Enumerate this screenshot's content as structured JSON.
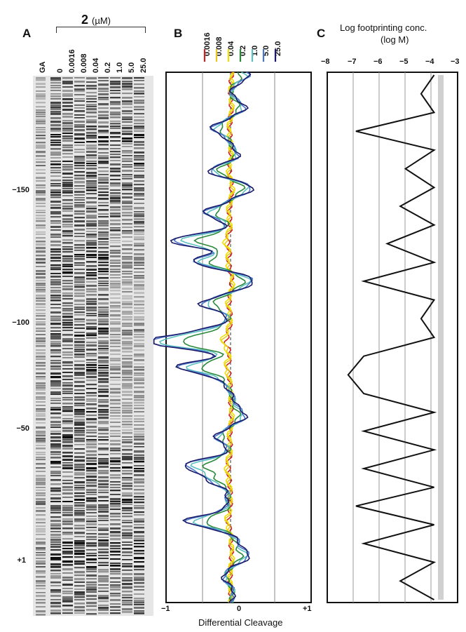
{
  "panel_a": {
    "letter": "A",
    "drug_number": "2",
    "drug_unit": "(µM)",
    "lanes": [
      "GA",
      "0",
      "0.0016",
      "0.008",
      "0.04",
      "0.2",
      "1.0",
      "5.0",
      "25.0"
    ],
    "positions": [
      "−150",
      "−100",
      "−50",
      "+1"
    ]
  },
  "panel_b": {
    "letter": "B",
    "xlabel": "Differential Cleavage",
    "xticks": [
      "−1",
      "0",
      "+1"
    ]
  },
  "panel_c": {
    "letter": "C",
    "title_line1": "Log footprinting conc.",
    "title_line2": "(log M)",
    "xticks": [
      "−8",
      "−7",
      "−6",
      "−5",
      "−4",
      "−3"
    ]
  },
  "chart_data": [
    {
      "type": "line",
      "panel": "B",
      "xlabel": "Differential Cleavage",
      "xlim": [
        -1,
        1
      ],
      "series": [
        {
          "name": "0.0016",
          "color": "#cc2222"
        },
        {
          "name": "0.008",
          "color": "#e8c820"
        },
        {
          "name": "0.04",
          "color": "#f0e000"
        },
        {
          "name": "0.2",
          "color": "#2a8a3a"
        },
        {
          "name": "1.0",
          "color": "#5cc0c0"
        },
        {
          "name": "5.0",
          "color": "#4a78c8"
        },
        {
          "name": "25.0",
          "color": "#1a1a6a"
        }
      ]
    },
    {
      "type": "line",
      "panel": "C",
      "title": "Log footprinting conc. (log M)",
      "xlim": [
        -8,
        -3
      ],
      "x_log_conc": [
        -3.9,
        -4.4,
        -3.9,
        -6.9,
        -3.9,
        -5.0,
        -3.9,
        -5.2,
        -3.9,
        -5.7,
        -3.9,
        -6.6,
        -3.9,
        -4.4,
        -3.9,
        -6.6,
        -7.2,
        -6.6,
        -3.9,
        -6.6,
        -3.9,
        -6.6,
        -3.9,
        -6.9,
        -3.9,
        -6.6,
        -3.9,
        -5.2,
        -3.9
      ]
    }
  ]
}
